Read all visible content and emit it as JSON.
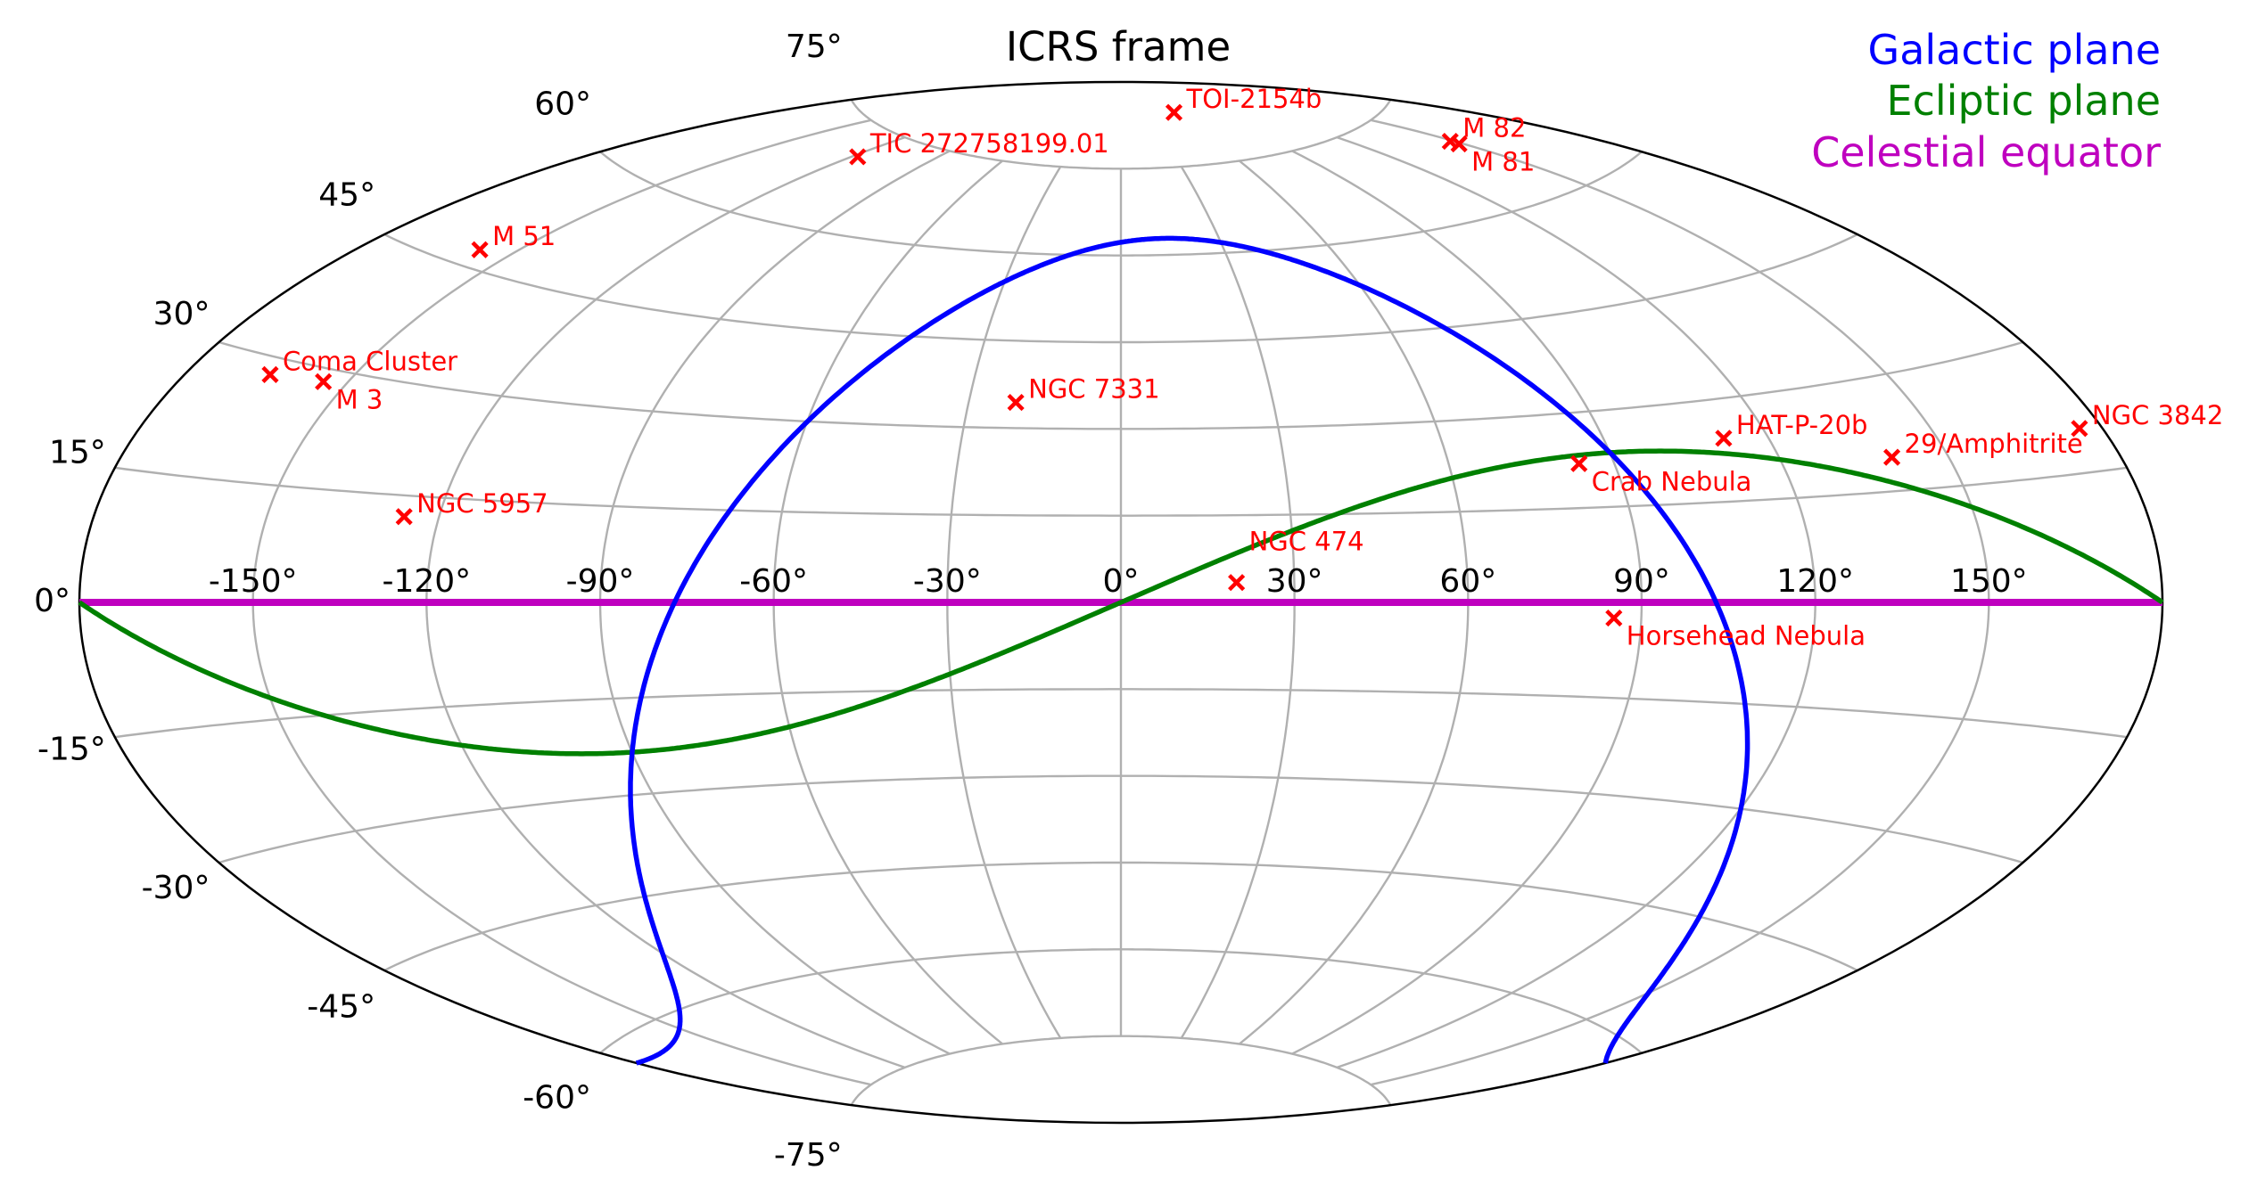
{
  "chart_data": {
    "type": "scatter",
    "projection": "aitoff",
    "title": "ICRS frame",
    "xlabel": "",
    "ylabel": "",
    "grid": true,
    "xlim": [
      -180,
      180
    ],
    "ylim": [
      -90,
      90
    ],
    "xticks": [
      -150,
      -120,
      -90,
      -60,
      -30,
      0,
      30,
      60,
      90,
      120,
      150
    ],
    "xtick_labels": [
      "-150°",
      "-120°",
      "-90°",
      "-60°",
      "-30°",
      "0°",
      "30°",
      "60°",
      "90°",
      "120°",
      "150°"
    ],
    "yticks": [
      -75,
      -60,
      -45,
      -30,
      -15,
      0,
      15,
      30,
      45,
      60,
      75
    ],
    "ytick_labels": [
      "-75°",
      "-60°",
      "-45°",
      "-30°",
      "-15°",
      "0°",
      "15°",
      "30°",
      "45°",
      "60°",
      "75°"
    ],
    "legend_position": "top-right",
    "legend": [
      {
        "label": "Galactic plane",
        "color": "#0000ff"
      },
      {
        "label": "Ecliptic plane",
        "color": "#008000"
      },
      {
        "label": "Celestial equator",
        "color": "#bf00bf"
      }
    ],
    "curves": {
      "galactic_plane": {
        "pole_ra": 192.859,
        "pole_dec": 27.128,
        "color": "#0000ff"
      },
      "ecliptic_plane": {
        "obliquity": 23.44,
        "color": "#008000"
      },
      "celestial_equator": {
        "dec": 0,
        "color": "#bf00bf"
      }
    },
    "marker_color": "#ff0000",
    "points": [
      {
        "name": "TIC 272758199.01",
        "ra": -118,
        "dec": 71
      },
      {
        "name": "TOI-2154b",
        "ra": 62,
        "dec": 84
      },
      {
        "name": "M 82",
        "ra": 148.97,
        "dec": 69.68
      },
      {
        "name": "M 81",
        "ra": 148.89,
        "dec": 69.07
      },
      {
        "name": "M 51",
        "ra": -157.53,
        "dec": 47.2
      },
      {
        "name": "Coma Cluster",
        "ra": -165.05,
        "dec": 27.98
      },
      {
        "name": "M 3",
        "ra": -154.45,
        "dec": 28.38
      },
      {
        "name": "NGC 7331",
        "ra": -20.73,
        "dec": 34.42
      },
      {
        "name": "NGC 5957",
        "ra": -126.1,
        "dec": 12.05
      },
      {
        "name": "HAT-P-20b",
        "ra": 111.9,
        "dec": 24.3
      },
      {
        "name": "NGC 3842",
        "ra": 176.0,
        "dec": 19.95
      },
      {
        "name": "Crab Nebula",
        "ra": 83.63,
        "dec": 22.01
      },
      {
        "name": "29/Amphitrite",
        "ra": 140,
        "dec": 19.5
      },
      {
        "name": "NGC 474",
        "ra": 20.0,
        "dec": 3.42
      },
      {
        "name": "Horsehead Nebula",
        "ra": 85.25,
        "dec": -2.46
      }
    ]
  }
}
